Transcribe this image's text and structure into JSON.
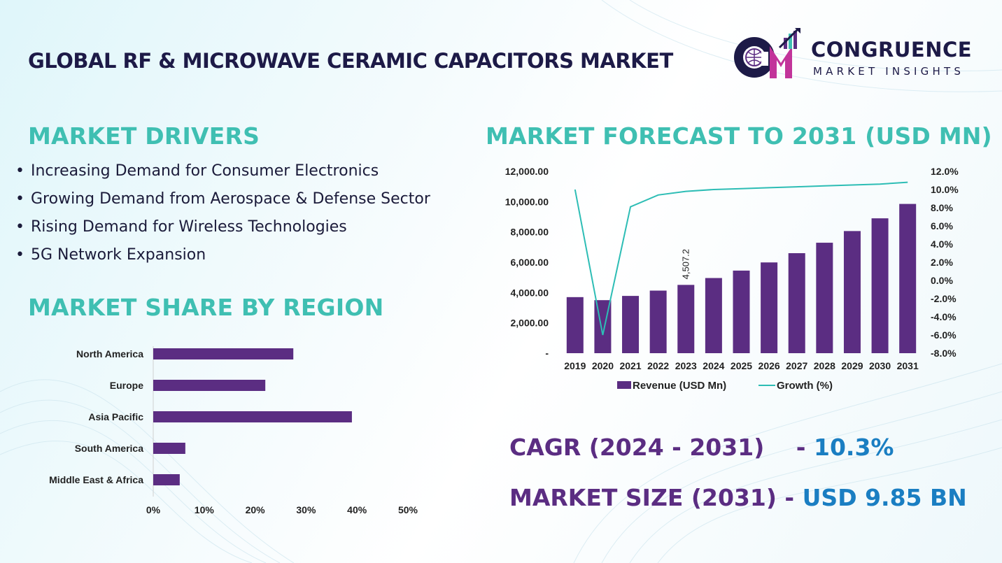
{
  "title": "GLOBAL RF & MICROWAVE CERAMIC CAPACITORS MARKET",
  "logo": {
    "name": "CONGRUENCE",
    "tagline": "MARKET INSIGHTS"
  },
  "drivers": {
    "heading": "MARKET DRIVERS",
    "items": [
      "Increasing Demand for Consumer Electronics",
      "Growing Demand from Aerospace & Defense Sector",
      "Rising Demand for Wireless Technologies",
      "5G Network Expansion"
    ]
  },
  "region": {
    "heading": "MARKET SHARE BY REGION"
  },
  "forecast": {
    "heading": "MARKET FORECAST TO 2031 (USD MN)"
  },
  "kpis": {
    "cagr_label": "CAGR (2024 - 2031)",
    "cagr_value": "10.3%",
    "size_label": "MARKET SIZE (2031)",
    "size_value": "USD 9.85 BN",
    "separator": "-"
  },
  "colors": {
    "purple": "#5b2d82",
    "teal": "#3fbfb2",
    "growth_line": "#2dbdb5",
    "navy": "#1d1a47",
    "blue": "#1a7ec2"
  },
  "chart_data": [
    {
      "type": "bar",
      "orientation": "horizontal",
      "categories": [
        "North America",
        "Europe",
        "Asia Pacific",
        "South America",
        "Middle East & Africa"
      ],
      "values": [
        27.5,
        22,
        39,
        6.3,
        5.2
      ],
      "unit": "%",
      "xlim": [
        0,
        50
      ],
      "x_ticks": [
        "0%",
        "10%",
        "20%",
        "30%",
        "40%",
        "50%"
      ]
    },
    {
      "type": "bar+line",
      "categories": [
        "2019",
        "2020",
        "2021",
        "2022",
        "2023",
        "2024",
        "2025",
        "2026",
        "2027",
        "2028",
        "2029",
        "2030",
        "2031"
      ],
      "series": [
        {
          "name": "Revenue (USD Mn)",
          "type": "bar",
          "axis": "left",
          "values": [
            3700,
            3500,
            3780,
            4130,
            4507.2,
            4960,
            5450,
            5990,
            6600,
            7290,
            8060,
            8900,
            9850
          ]
        },
        {
          "name": "Growth (%)",
          "type": "line",
          "axis": "right",
          "values": [
            10.0,
            -6.0,
            8.1,
            9.4,
            9.8,
            10.0,
            10.1,
            10.2,
            10.3,
            10.4,
            10.5,
            10.6,
            10.8
          ]
        }
      ],
      "data_labels": [
        {
          "category": "2023",
          "text": "4,507.2"
        }
      ],
      "ylim_left": [
        0,
        12000
      ],
      "left_ticks": [
        "-",
        "2,000.00",
        "4,000.00",
        "6,000.00",
        "8,000.00",
        "10,000.00",
        "12,000.00"
      ],
      "ylim_right": [
        -8,
        12
      ],
      "right_ticks": [
        "-8.0%",
        "-6.0%",
        "-4.0%",
        "-2.0%",
        "0.0%",
        "2.0%",
        "4.0%",
        "6.0%",
        "8.0%",
        "10.0%",
        "12.0%"
      ],
      "legend_position": "bottom",
      "grid": false
    }
  ]
}
